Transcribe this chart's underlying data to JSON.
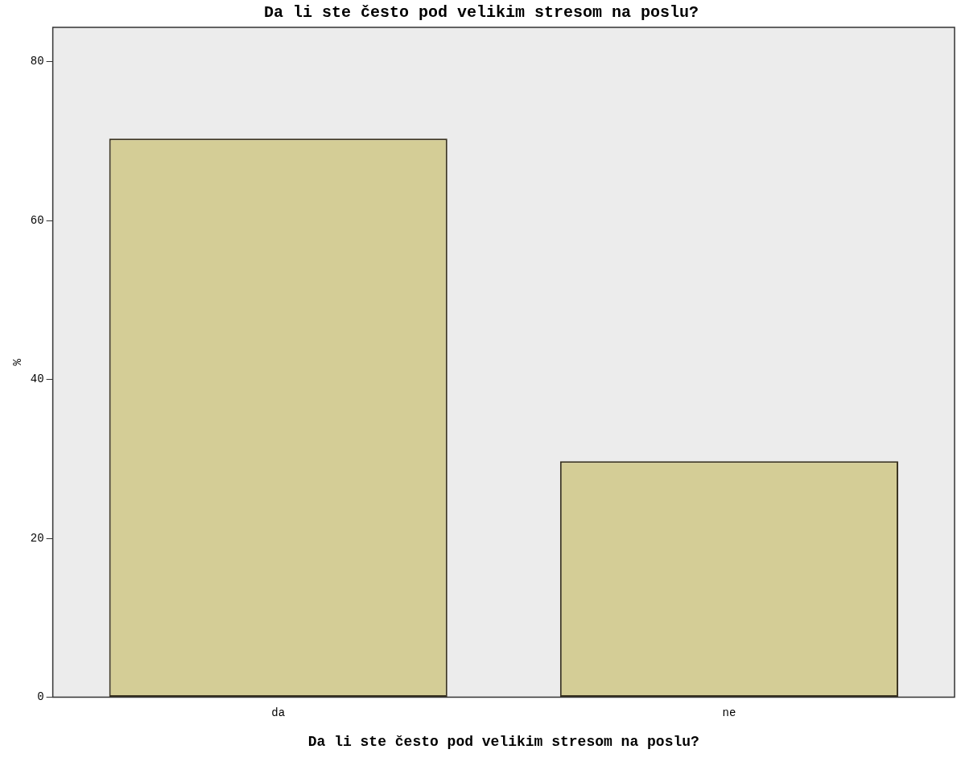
{
  "chart_data": {
    "type": "bar",
    "title": "Da li ste često pod velikim stresom na poslu?",
    "xlabel": "Da li ste često pod velikim stresom na poslu?",
    "ylabel": "%",
    "categories": [
      "da",
      "ne"
    ],
    "values": [
      70.3,
      29.7
    ],
    "color": "#d4cd96",
    "ylim": [
      0,
      84.3
    ],
    "yticks": [
      0,
      20,
      40,
      60,
      80
    ],
    "grid": false,
    "legend": false
  }
}
